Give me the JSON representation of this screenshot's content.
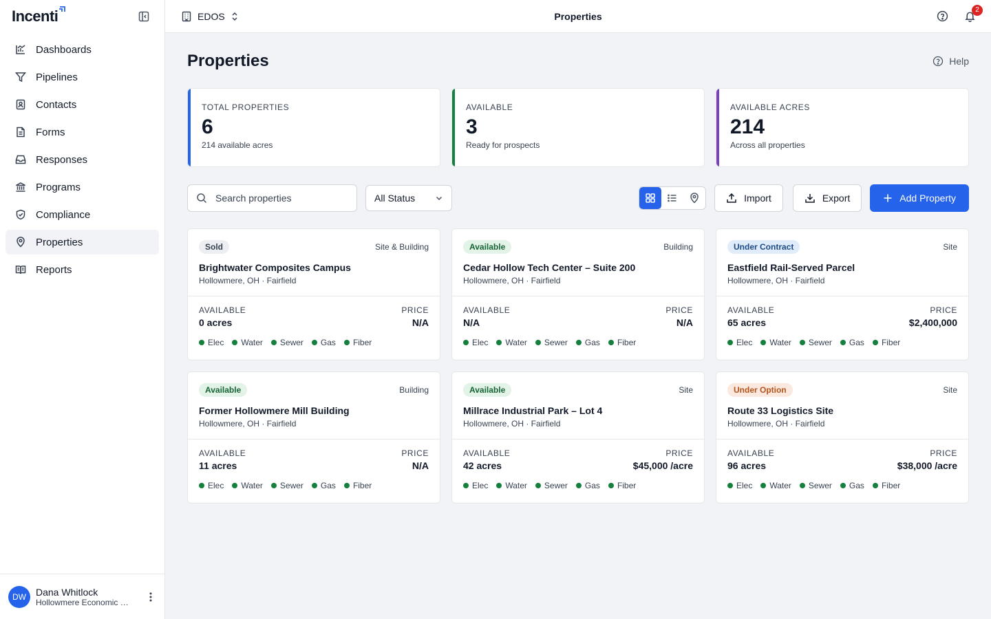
{
  "brand": {
    "name": "Incenti"
  },
  "sidebar": {
    "items": [
      {
        "label": "Dashboards",
        "icon": "bar-chart-icon"
      },
      {
        "label": "Pipelines",
        "icon": "funnel-icon"
      },
      {
        "label": "Contacts",
        "icon": "contact-card-icon"
      },
      {
        "label": "Forms",
        "icon": "document-icon"
      },
      {
        "label": "Responses",
        "icon": "inbox-icon"
      },
      {
        "label": "Programs",
        "icon": "bank-icon"
      },
      {
        "label": "Compliance",
        "icon": "shield-icon"
      },
      {
        "label": "Properties",
        "icon": "map-pin-icon",
        "active": true
      },
      {
        "label": "Reports",
        "icon": "book-icon"
      }
    ],
    "user": {
      "initials": "DW",
      "name": "Dana Whitlock",
      "org": "Hollowmere Economic Development"
    }
  },
  "topbar": {
    "org": "EDOS",
    "title": "Properties",
    "notifications": "2"
  },
  "page": {
    "title": "Properties",
    "help": "Help"
  },
  "stats": [
    {
      "label": "TOTAL PROPERTIES",
      "value": "6",
      "sub": "214 available acres",
      "accent": "#2563eb"
    },
    {
      "label": "AVAILABLE",
      "value": "3",
      "sub": "Ready for prospects",
      "accent": "#15803d"
    },
    {
      "label": "AVAILABLE ACRES",
      "value": "214",
      "sub": "Across all properties",
      "accent": "#7e3fbf"
    }
  ],
  "toolbar": {
    "search_placeholder": "Search properties",
    "status_filter": "All Status",
    "import_label": "Import",
    "export_label": "Export",
    "add_label": "Add Property"
  },
  "card_labels": {
    "available": "AVAILABLE",
    "price": "PRICE"
  },
  "utilities": [
    "Elec",
    "Water",
    "Sewer",
    "Gas",
    "Fiber"
  ],
  "properties": [
    {
      "status": "Sold",
      "status_kind": "sold",
      "type": "Site & Building",
      "name": "Brightwater Composites Campus",
      "location": "Hollowmere, OH · Fairfield",
      "available": "0 acres",
      "price": "N/A"
    },
    {
      "status": "Available",
      "status_kind": "available",
      "type": "Building",
      "name": "Cedar Hollow Tech Center – Suite 200",
      "location": "Hollowmere, OH · Fairfield",
      "available": "N/A",
      "price": "N/A"
    },
    {
      "status": "Under Contract",
      "status_kind": "contract",
      "type": "Site",
      "name": "Eastfield Rail-Served Parcel",
      "location": "Hollowmere, OH · Fairfield",
      "available": "65 acres",
      "price": "$2,400,000"
    },
    {
      "status": "Available",
      "status_kind": "available",
      "type": "Building",
      "name": "Former Hollowmere Mill Building",
      "location": "Hollowmere, OH · Fairfield",
      "available": "11 acres",
      "price": "N/A"
    },
    {
      "status": "Available",
      "status_kind": "available",
      "type": "Site",
      "name": "Millrace Industrial Park – Lot 4",
      "location": "Hollowmere, OH · Fairfield",
      "available": "42 acres",
      "price": "$45,000 /acre"
    },
    {
      "status": "Under Option",
      "status_kind": "option",
      "type": "Site",
      "name": "Route 33 Logistics Site",
      "location": "Hollowmere, OH · Fairfield",
      "available": "96 acres",
      "price": "$38,000 /acre"
    }
  ]
}
